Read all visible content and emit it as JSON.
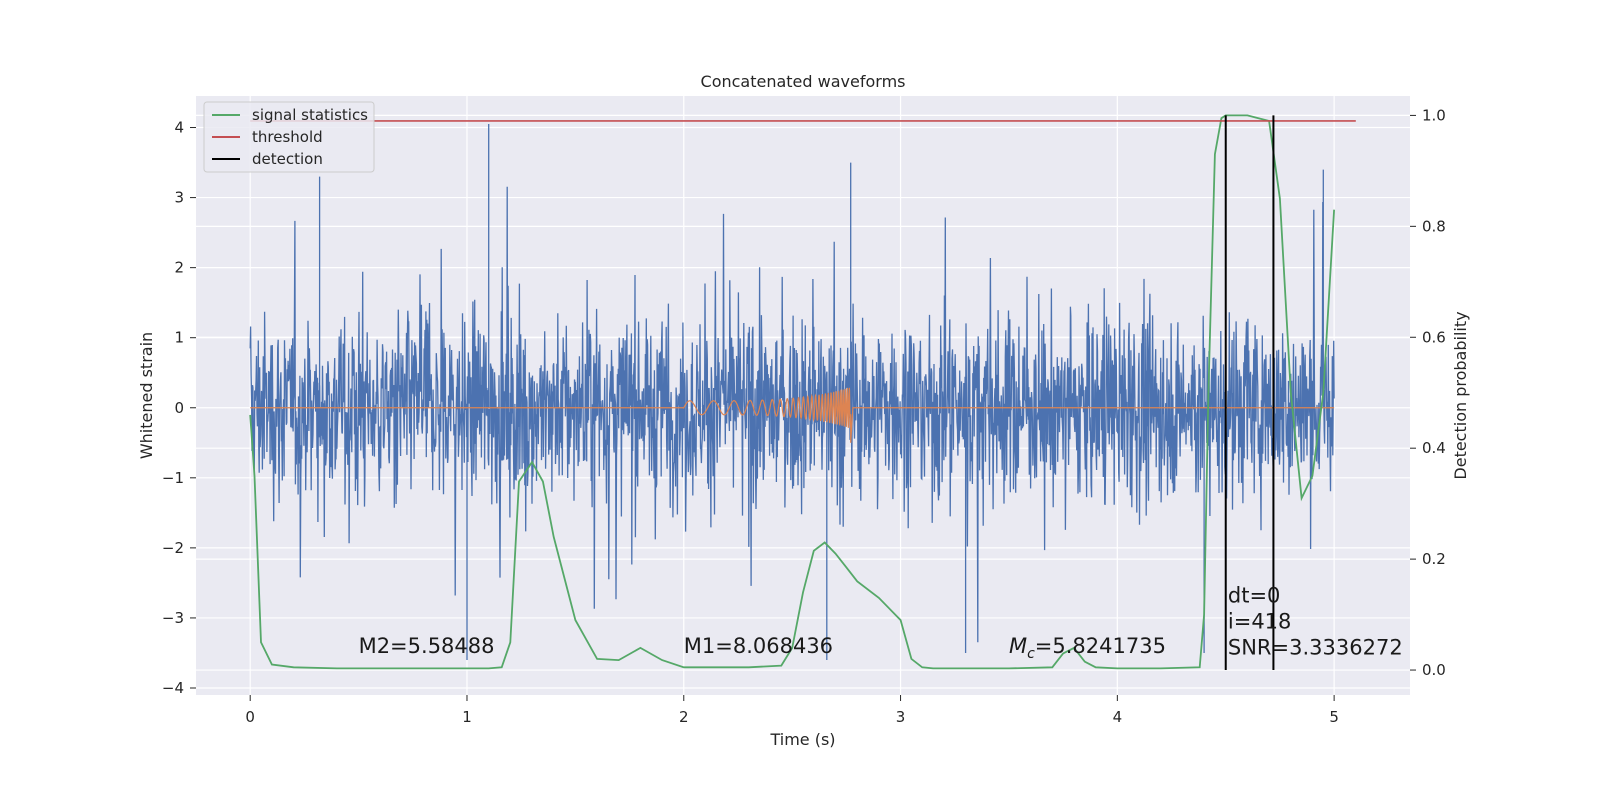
{
  "chart_data": {
    "type": "line",
    "title": "Concatenated waveforms",
    "xlabel": "Time (s)",
    "ylabel": "Whitened strain",
    "y2label": "Detection probability",
    "xlim": [
      -0.25,
      5.35
    ],
    "ylim": [
      -4.1,
      4.45
    ],
    "y2lim": [
      -0.045,
      1.035
    ],
    "xticks": [
      0,
      1,
      2,
      3,
      4,
      5
    ],
    "yticks": [
      -4,
      -3,
      -2,
      -1,
      0,
      1,
      2,
      3,
      4
    ],
    "y2ticks": [
      0.0,
      0.2,
      0.4,
      0.6,
      0.8,
      1.0
    ],
    "y2tick_labels": [
      "0.0",
      "0.2",
      "0.4",
      "0.6",
      "0.8",
      "1.0"
    ],
    "grid": true,
    "legend_position": "top-left",
    "colors": {
      "background": "#eaeaf2",
      "strain": "#4c72b0",
      "injected": "#dd8452",
      "statistics": "#55a868",
      "threshold": "#c44e52",
      "detection": "#000000"
    },
    "series": [
      {
        "name": "signal statistics",
        "axis": "right",
        "x": [
          0,
          0.02,
          0.05,
          0.1,
          0.2,
          0.4,
          0.8,
          1.1,
          1.16,
          1.2,
          1.24,
          1.3,
          1.35,
          1.4,
          1.5,
          1.6,
          1.7,
          1.8,
          1.9,
          2.0,
          2.3,
          2.45,
          2.5,
          2.55,
          2.6,
          2.65,
          2.7,
          2.75,
          2.8,
          2.9,
          3.0,
          3.05,
          3.1,
          3.15,
          3.3,
          3.5,
          3.7,
          3.75,
          3.8,
          3.85,
          3.9,
          4.0,
          4.2,
          4.38,
          4.4,
          4.42,
          4.45,
          4.48,
          4.5,
          4.6,
          4.7,
          4.75,
          4.8,
          4.85,
          4.9,
          4.95,
          5.0
        ],
        "values": [
          0.46,
          0.35,
          0.05,
          0.01,
          0.005,
          0.003,
          0.003,
          0.003,
          0.005,
          0.05,
          0.34,
          0.375,
          0.34,
          0.24,
          0.09,
          0.02,
          0.018,
          0.04,
          0.018,
          0.005,
          0.005,
          0.008,
          0.04,
          0.14,
          0.215,
          0.23,
          0.21,
          0.185,
          0.16,
          0.13,
          0.09,
          0.02,
          0.005,
          0.003,
          0.003,
          0.003,
          0.005,
          0.03,
          0.04,
          0.015,
          0.005,
          0.003,
          0.003,
          0.005,
          0.1,
          0.5,
          0.93,
          0.995,
          1.0,
          1.0,
          0.99,
          0.85,
          0.5,
          0.31,
          0.35,
          0.5,
          0.83
        ]
      },
      {
        "name": "threshold",
        "axis": "right",
        "x": [
          -0.0,
          5.1
        ],
        "values": [
          0.99,
          0.99
        ]
      },
      {
        "name": "detection",
        "axis": "right",
        "vlines": [
          4.5,
          4.72
        ],
        "ymin": 0.0,
        "ymax": 1.0
      }
    ],
    "annotations": [
      {
        "text": "M2=5.58488",
        "x": 0.5,
        "y": -3.5
      },
      {
        "text": "M1=8.068436",
        "x": 2.0,
        "y": -3.5
      },
      {
        "text": "=5.8241735",
        "x": 3.5,
        "y": -3.5,
        "prefix_symbol": "M",
        "prefix_subscript": "c"
      },
      {
        "text": "dt=0",
        "x": 4.51,
        "y": -2.78
      },
      {
        "text": "i=418",
        "x": 4.51,
        "y": -3.15
      },
      {
        "text": "SNR=3.3336272",
        "x": 4.51,
        "y": -3.52
      }
    ]
  }
}
